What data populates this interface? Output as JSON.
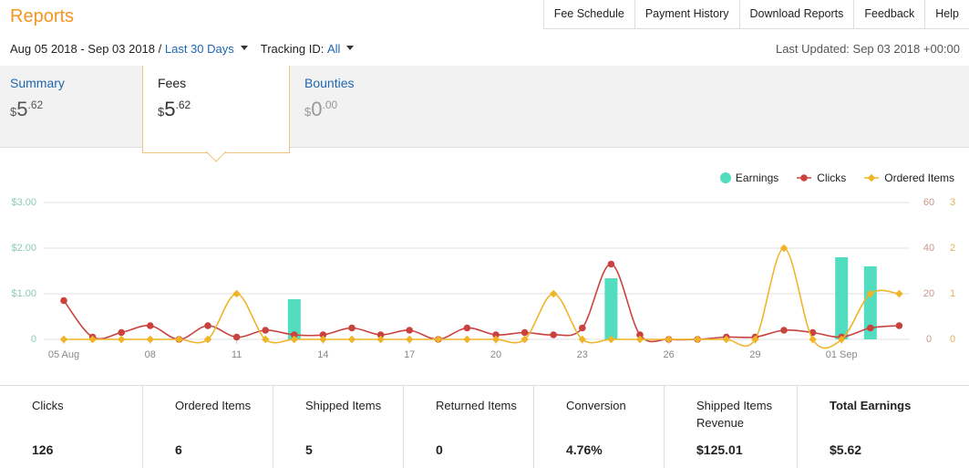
{
  "header": {
    "title": "Reports",
    "nav": [
      "Fee Schedule",
      "Payment History",
      "Download Reports",
      "Feedback",
      "Help"
    ]
  },
  "toolbar": {
    "date_range": "Aug 05 2018 - Sep 03 2018 /",
    "period": "Last 30 Days",
    "tracking_label": "Tracking ID:",
    "tracking_value": "All",
    "last_updated": "Last Updated: Sep 03 2018 +00:00"
  },
  "tabs": [
    {
      "label": "Summary",
      "symbol": "$",
      "whole": "5",
      "fraction": ".62"
    },
    {
      "label": "Fees",
      "symbol": "$",
      "whole": "5",
      "fraction": ".62"
    },
    {
      "label": "Bounties",
      "symbol": "$",
      "whole": "0",
      "fraction": ".00"
    }
  ],
  "chart_data": {
    "type": "combo",
    "categories": [
      "05 Aug",
      null,
      null,
      "08",
      null,
      null,
      "11",
      null,
      null,
      "14",
      null,
      null,
      "17",
      null,
      null,
      "20",
      null,
      null,
      "23",
      null,
      null,
      "26",
      null,
      null,
      "29",
      null,
      null,
      "01 Sep",
      null,
      null
    ],
    "series": [
      {
        "name": "Earnings",
        "type": "bar",
        "axis": "y",
        "color": "#52dcc0",
        "values": [
          0,
          0,
          0,
          0,
          0,
          0,
          0,
          0,
          0.88,
          0,
          0,
          0,
          0,
          0,
          0,
          0,
          0,
          0,
          0,
          1.34,
          0,
          0,
          0,
          0,
          0,
          0,
          0,
          1.8,
          1.6,
          0
        ]
      },
      {
        "name": "Clicks",
        "type": "line",
        "marker": "circle",
        "axis": "y2",
        "color": "#c9423e",
        "values": [
          17,
          1,
          3,
          6,
          0,
          6,
          1,
          4,
          2,
          2,
          5,
          2,
          4,
          0,
          5,
          2,
          3,
          2,
          5,
          33,
          2,
          0,
          0,
          1,
          1,
          4,
          3,
          1,
          5,
          6
        ]
      },
      {
        "name": "Ordered Items",
        "type": "line",
        "marker": "diamond",
        "axis": "y3",
        "color": "#f0b429",
        "values": [
          0,
          0,
          0,
          0,
          0,
          0,
          1,
          0,
          0,
          0,
          0,
          0,
          0,
          0,
          0,
          0,
          0,
          1,
          0,
          0,
          0,
          0,
          0,
          0,
          0,
          2,
          0,
          0,
          1,
          1
        ]
      }
    ],
    "ylim": [
      0,
      3
    ],
    "yticks": [
      0,
      {
        "value": 1,
        "label": "$1.00"
      },
      {
        "value": 2,
        "label": "$2.00"
      },
      {
        "value": 3,
        "label": "$3.00"
      }
    ],
    "y2lim": [
      0,
      60
    ],
    "y2ticks": [
      0,
      20,
      40,
      60
    ],
    "y3lim": [
      0,
      3
    ],
    "y3ticks": [
      0,
      1,
      2,
      3
    ],
    "grid": true,
    "legend": "top-right"
  },
  "stats": [
    {
      "label": "Clicks",
      "value": "126"
    },
    {
      "label": "Ordered Items",
      "value": "6"
    },
    {
      "label": "Shipped Items",
      "value": "5"
    },
    {
      "label": "Returned Items",
      "value": "0"
    },
    {
      "label": "Conversion",
      "value": "4.76%"
    },
    {
      "label": "Shipped Items Revenue",
      "value": "$125.01"
    },
    {
      "label": "Total Earnings",
      "value": "$5.62"
    }
  ]
}
